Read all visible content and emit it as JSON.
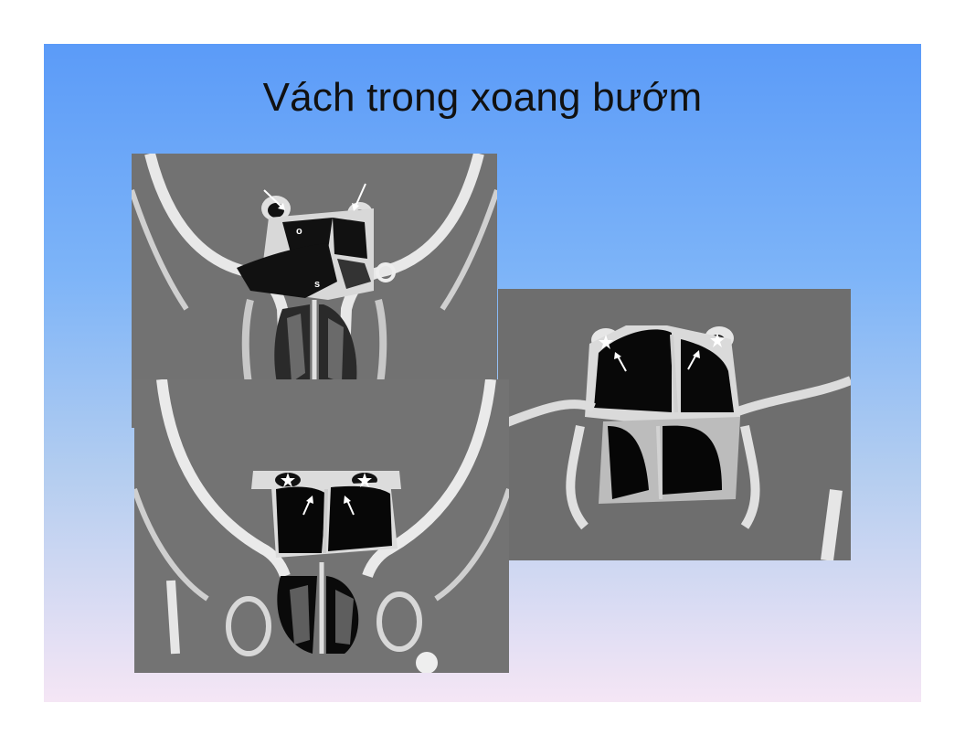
{
  "slide": {
    "title": "Vách trong xoang bướm",
    "background_gradient": [
      "#5b9bf8",
      "#7db4f8",
      "#b3cdf0",
      "#f5e6f5"
    ]
  },
  "images": {
    "top_ct": {
      "labels": {
        "o": "o",
        "s": "s"
      }
    },
    "bottom_ct": {},
    "right_ct": {}
  }
}
